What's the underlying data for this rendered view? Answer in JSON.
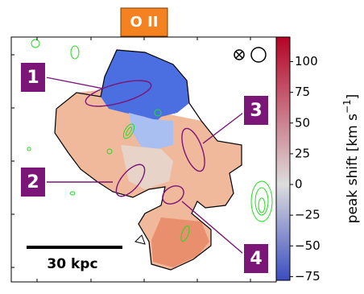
{
  "chart_data": {
    "type": "image",
    "title": "O II",
    "region_labels": [
      "1",
      "2",
      "3",
      "4"
    ],
    "scale_bar": "30 kpc",
    "colorbar": {
      "label": "peak shift [km s",
      "label_exponent": "−1",
      "label_end": "]",
      "clim": [
        -78,
        120
      ],
      "ticks": [
        {
          "value": -75,
          "label": "−75"
        },
        {
          "value": -50,
          "label": "−50"
        },
        {
          "value": -25,
          "label": "−25"
        },
        0,
        25,
        50,
        75,
        100
      ],
      "cmap": [
        "#3b4cc0",
        "#dddddd",
        "#b40426"
      ]
    }
  }
}
